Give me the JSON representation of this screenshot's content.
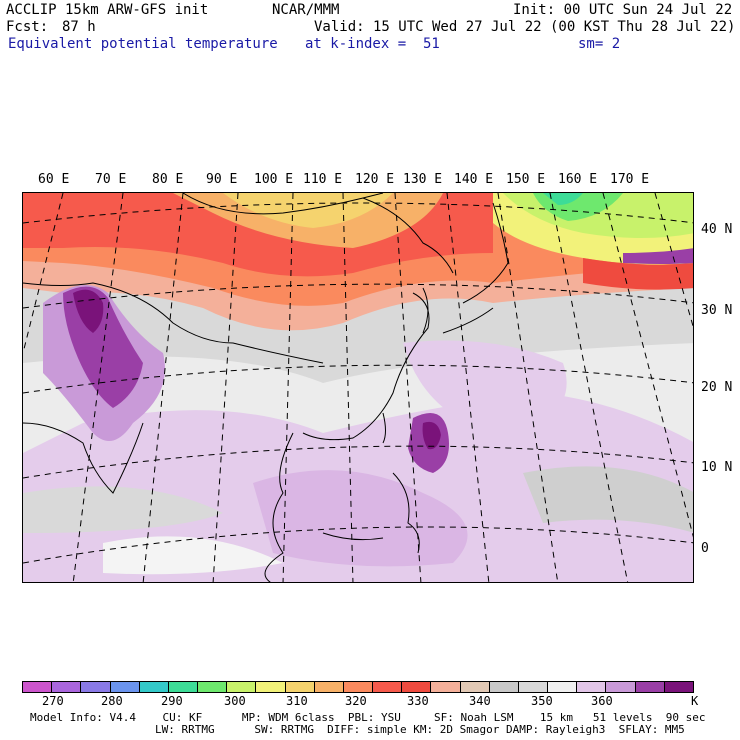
{
  "header": {
    "model": "ACCLIP 15km ARW-GFS init",
    "center": "NCAR/MMM",
    "init": "Init: 00 UTC Sun 24 Jul 22",
    "fcst_label": "Fcst:",
    "fcst_value": "87 h",
    "valid": "Valid: 15 UTC Wed 27 Jul 22 (00 KST Thu 28 Jul 22)",
    "field": "Equivalent potential temperature",
    "level": "at k-index =  51",
    "smooth": "sm= 2"
  },
  "map": {
    "lon_labels": [
      "60 E",
      "70 E",
      "80 E",
      "90 E",
      "100 E",
      "110 E",
      "120 E",
      "130 E",
      "140 E",
      "150 E",
      "160 E",
      "170 E"
    ],
    "lat_labels": [
      "40 N",
      "30 N",
      "20 N",
      "10 N",
      "0"
    ]
  },
  "colorbar": {
    "colors": [
      "#cc55cc",
      "#aa66dd",
      "#8a7ae6",
      "#6b94ee",
      "#34c9c9",
      "#3ddc97",
      "#6ee86e",
      "#c8f26b",
      "#f2f27a",
      "#f5d36e",
      "#f7b168",
      "#fa8a5e",
      "#f65a4c",
      "#ef4b3f",
      "#f4b09a",
      "#e2c9b5",
      "#c8c8c8",
      "#d8d8d8",
      "#f0f0f0",
      "#e2c6e8",
      "#c99ad8",
      "#9a3fa6",
      "#7a137a"
    ],
    "tick_labels": [
      "270",
      "280",
      "290",
      "300",
      "310",
      "320",
      "330",
      "340",
      "350",
      "360",
      "K"
    ]
  },
  "footer": {
    "line1": "Model Info: V4.4    CU: KF      MP: WDM 6class  PBL: YSU     SF: Noah LSM    15 km   51 levels  90 sec",
    "line2": "LW: RRTMG      SW: RRTMG  DIFF: simple KM: 2D Smagor DAMP: Rayleigh3  SFLAY: MM5"
  }
}
